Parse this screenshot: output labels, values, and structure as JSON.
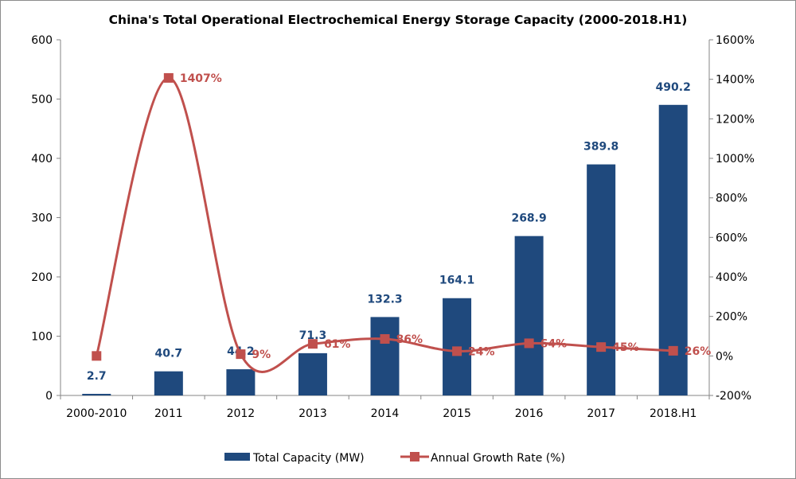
{
  "chart_data": {
    "type": "bar+line",
    "title": "China's Total Operational Electrochemical Energy Storage Capacity (2000-2018.H1)",
    "categories": [
      "2000-2010",
      "2011",
      "2012",
      "2013",
      "2014",
      "2015",
      "2016",
      "2017",
      "2018.H1"
    ],
    "series": [
      {
        "name": "Total Capacity (MW)",
        "type": "bar",
        "axis": "left",
        "color": "#1f497d",
        "values": [
          2.7,
          40.7,
          44.2,
          71.3,
          132.3,
          164.1,
          268.9,
          389.8,
          490.2
        ],
        "labels": [
          "2.7",
          "40.7",
          "44.2",
          "71.3",
          "132.3",
          "164.1",
          "268.9",
          "389.8",
          "490.2"
        ]
      },
      {
        "name": "Annual Growth Rate (%)",
        "type": "line",
        "axis": "right",
        "color": "#c0504d",
        "smooth": true,
        "marker": "square",
        "values": [
          0,
          1407,
          9,
          61,
          86,
          24,
          64,
          45,
          26
        ],
        "labels": [
          "",
          "1407%",
          "9%",
          "61%",
          "86%",
          "24%",
          "64%",
          "45%",
          "26%"
        ]
      }
    ],
    "yleft": {
      "lim": [
        0,
        600
      ],
      "ticks": [
        "0",
        "100",
        "200",
        "300",
        "400",
        "500",
        "600"
      ]
    },
    "yright": {
      "lim": [
        -200,
        1600
      ],
      "ticks": [
        "-200%",
        "0%",
        "200%",
        "400%",
        "600%",
        "800%",
        "1000%",
        "1200%",
        "1400%",
        "1600%"
      ]
    },
    "grid": false,
    "legend": "bottom"
  }
}
